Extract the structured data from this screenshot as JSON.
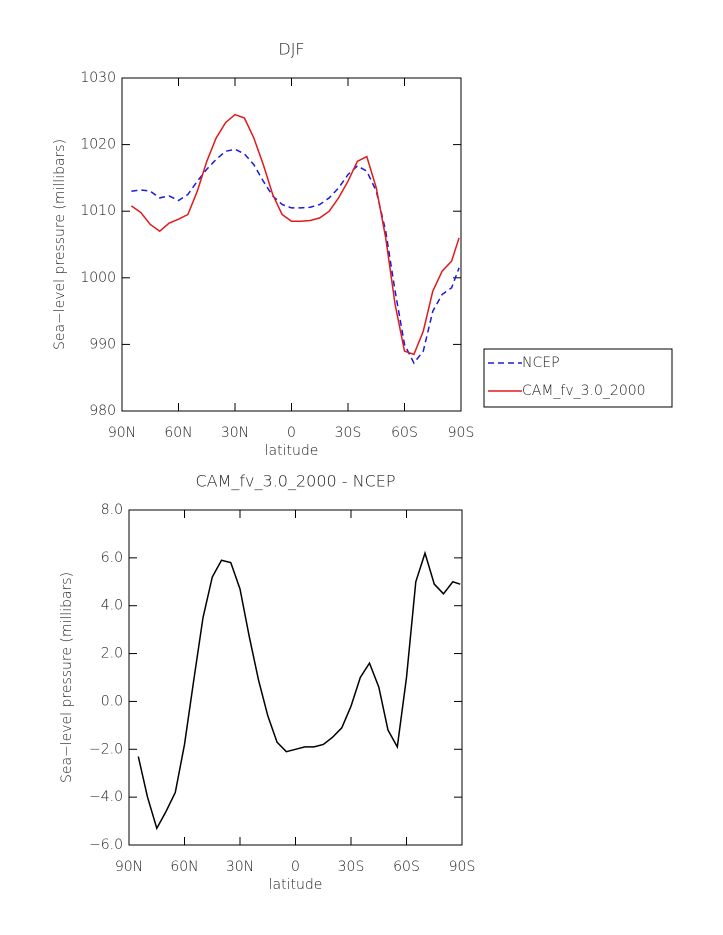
{
  "chart_data": [
    {
      "type": "line",
      "title": "DJF",
      "xlabel": "latitude",
      "ylabel": "Sea−level pressure (millibars)",
      "x": [
        85,
        80,
        75,
        70,
        65,
        60,
        55,
        50,
        45,
        40,
        35,
        30,
        25,
        20,
        15,
        10,
        5,
        0,
        -5,
        -10,
        -15,
        -20,
        -25,
        -30,
        -35,
        -40,
        -45,
        -50,
        -55,
        -60,
        -65,
        -70,
        -75,
        -80,
        -85,
        -89
      ],
      "series": [
        {
          "name": "NCEP",
          "color": "#1a1adc",
          "style": "dashed",
          "values": [
            1013,
            1013.2,
            1013,
            1012,
            1012.3,
            1011.6,
            1012.5,
            1014.5,
            1016.3,
            1017.8,
            1019,
            1019.3,
            1018.6,
            1017,
            1014.5,
            1012.3,
            1011,
            1010.5,
            1010.5,
            1010.6,
            1011,
            1012,
            1013.5,
            1015.5,
            1016.8,
            1016,
            1013,
            1007,
            998,
            990,
            987.2,
            989,
            995,
            997.5,
            998.5,
            1001.5
          ]
        },
        {
          "name": "CAM_fv_3.0_2000",
          "color": "#e01a1a",
          "style": "solid",
          "values": [
            1010.8,
            1009.8,
            1008,
            1007,
            1008.2,
            1008.8,
            1009.5,
            1013,
            1017.5,
            1021,
            1023.3,
            1024.5,
            1024,
            1021,
            1017,
            1012.5,
            1009.5,
            1008.5,
            1008.5,
            1008.6,
            1009,
            1010,
            1012,
            1014.5,
            1017.5,
            1018.2,
            1013.5,
            1006,
            996,
            989,
            988.5,
            992,
            998,
            1001,
            1002.5,
            1006
          ]
        }
      ],
      "xlim": [
        90,
        -90
      ],
      "xticks": [
        {
          "value": 90,
          "label": "90N"
        },
        {
          "value": 60,
          "label": "60N"
        },
        {
          "value": 30,
          "label": "30N"
        },
        0,
        {
          "value": -30,
          "label": "30S"
        },
        {
          "value": -60,
          "label": "60S"
        },
        {
          "value": -90,
          "label": "90S"
        }
      ],
      "ylim": [
        980,
        1030
      ],
      "yticks": [
        980,
        990,
        1000,
        1010,
        1020,
        1030
      ],
      "legend": "right"
    },
    {
      "type": "line",
      "title": "CAM_fv_3.0_2000 - NCEP",
      "xlabel": "latitude",
      "ylabel": "Sea−level pressure (millibars)",
      "x": [
        85,
        80,
        75,
        70,
        65,
        60,
        55,
        50,
        45,
        40,
        35,
        30,
        25,
        20,
        15,
        10,
        5,
        0,
        -5,
        -10,
        -15,
        -20,
        -25,
        -30,
        -35,
        -40,
        -45,
        -50,
        -55,
        -60,
        -65,
        -70,
        -75,
        -80,
        -85,
        -89
      ],
      "series": [
        {
          "color": "#000000",
          "style": "solid",
          "values": [
            -2.3,
            -4.0,
            -5.3,
            -4.6,
            -3.8,
            -1.8,
            0.9,
            3.5,
            5.2,
            5.9,
            5.8,
            4.7,
            2.7,
            0.9,
            -0.6,
            -1.7,
            -2.1,
            -2.0,
            -1.9,
            -1.9,
            -1.8,
            -1.5,
            -1.1,
            -0.2,
            1.0,
            1.6,
            0.6,
            -1.2,
            -1.9,
            1.0,
            5.0,
            6.2,
            4.9,
            4.5,
            5.0,
            4.9
          ]
        }
      ],
      "xlim": [
        90,
        -90
      ],
      "xticks": [
        {
          "value": 90,
          "label": "90N"
        },
        {
          "value": 60,
          "label": "60N"
        },
        {
          "value": 30,
          "label": "30N"
        },
        0,
        {
          "value": -30,
          "label": "30S"
        },
        {
          "value": -60,
          "label": "60S"
        },
        {
          "value": -90,
          "label": "90S"
        }
      ],
      "ylim": [
        -6,
        8
      ],
      "yticks": [
        {
          "value": -6,
          "label": "−6.0"
        },
        {
          "value": -4,
          "label": "−4.0"
        },
        {
          "value": -2,
          "label": "−2.0"
        },
        {
          "value": 0,
          "label": "0.0"
        },
        {
          "value": 2,
          "label": "2.0"
        },
        {
          "value": 4,
          "label": "4.0"
        },
        {
          "value": 6,
          "label": "6.0"
        },
        {
          "value": 8,
          "label": "8.0"
        }
      ]
    }
  ]
}
